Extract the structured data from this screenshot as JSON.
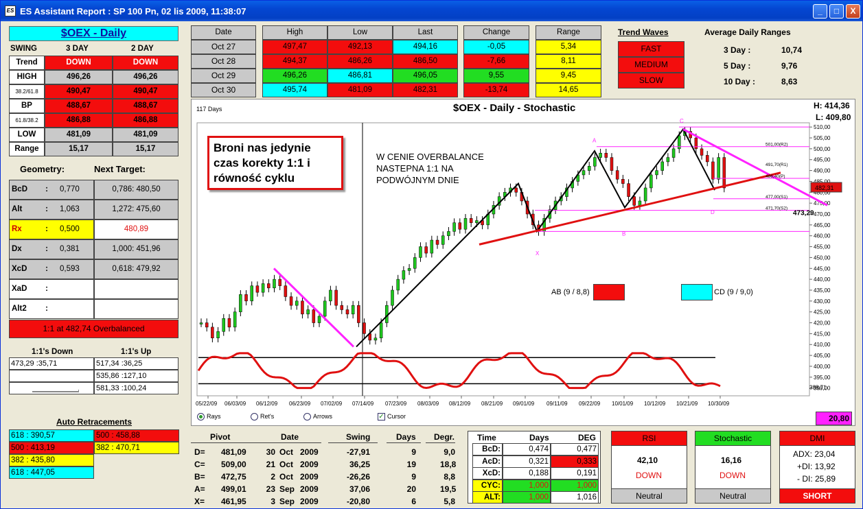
{
  "window": {
    "title": "ES Assistant Report : SP 100  Pn, 02 lis 2009, 11:38:07",
    "minimize": "_",
    "maximize": "□",
    "close": "X"
  },
  "left": {
    "title": "$OEX - Daily",
    "swing_label": "SWING",
    "col1": "3 DAY",
    "col2": "2 DAY",
    "rows": [
      {
        "label": "Trend",
        "v1": "DOWN",
        "v2": "DOWN",
        "c1": "red",
        "c2": "red"
      },
      {
        "label": "HIGH",
        "v1": "496,26",
        "v2": "496,26",
        "c1": "gray",
        "c2": "gray"
      },
      {
        "label": "38.2/61.8",
        "v1": "490,47",
        "v2": "490,47",
        "c1": "red",
        "c2": "red"
      },
      {
        "label": "BP",
        "v1": "488,67",
        "v2": "488,67",
        "c1": "red",
        "c2": "red"
      },
      {
        "label": "61.8/38.2",
        "v1": "486,88",
        "v2": "486,88",
        "c1": "red",
        "c2": "red"
      },
      {
        "label": "LOW",
        "v1": "481,09",
        "v2": "481,09",
        "c1": "gray",
        "c2": "gray"
      },
      {
        "label": "Range",
        "v1": "15,17",
        "v2": "15,17",
        "c1": "gray",
        "c2": "gray"
      }
    ],
    "geometry_label": "Geometry:",
    "next_target_label": "Next Target:",
    "geometry": [
      {
        "label": "BcD",
        "colon": ":",
        "val": "0,770",
        "target": "0,786: 480,50",
        "vc": "gray",
        "tc": "gray"
      },
      {
        "label": "Alt",
        "colon": ":",
        "val": "1,063",
        "target": "1,272: 475,60",
        "vc": "gray",
        "tc": "gray"
      },
      {
        "label": "Rx",
        "colon": ":",
        "val": "0,500",
        "target": "480,89",
        "vc": "yel",
        "tc": "wht"
      },
      {
        "label": "Dx",
        "colon": ":",
        "val": "0,381",
        "target": "1,000: 451,96",
        "vc": "gray",
        "tc": "gray"
      },
      {
        "label": "XcD",
        "colon": ":",
        "val": "0,593",
        "target": "0,618: 479,92",
        "vc": "gray",
        "tc": "gray"
      },
      {
        "label": "XaD",
        "colon": ":",
        "val": "",
        "target": "",
        "vc": "wht",
        "tc": "wht"
      },
      {
        "label": "Alt2",
        "colon": ":",
        "val": "",
        "target": "",
        "vc": "wht",
        "tc": "wht"
      }
    ],
    "overbalanced": "1:1 at 482,74 Overbalanced",
    "down_label": "1:1's Down",
    "up_label": "1:1's Up",
    "down": [
      "473,29 :35,71",
      "",
      ""
    ],
    "up": [
      "517,34 :36,25",
      "535,86 :127,10",
      "581,33 :100,24"
    ],
    "auto_ret_label": "Auto Retracements",
    "auto_left": [
      {
        "t": "618 : 390,57",
        "c": "cyan"
      },
      {
        "t": "500 : 413,19",
        "c": "red"
      },
      {
        "t": "382 : 435,80",
        "c": "yel"
      },
      {
        "t": "618 : 447,05",
        "c": "cyan"
      }
    ],
    "auto_right": [
      {
        "t": "500 : 458,88",
        "c": "red"
      },
      {
        "t": "382 : 470,71",
        "c": "yel"
      }
    ]
  },
  "top": {
    "date_hdr": "Date",
    "high_hdr": "High",
    "low_hdr": "Low",
    "last_hdr": "Last",
    "change_hdr": "Change",
    "range_hdr": "Range",
    "rows": [
      {
        "date": "Oct 27",
        "high": "497,47",
        "low": "492,13",
        "last": "494,16",
        "change": "-0,05",
        "range": "5,34",
        "hc": "red",
        "lc": "red",
        "lac": "cyan",
        "cc": "cyan"
      },
      {
        "date": "Oct 28",
        "high": "494,37",
        "low": "486,26",
        "last": "486,50",
        "change": "-7,66",
        "range": "8,11",
        "hc": "red",
        "lc": "red",
        "lac": "red",
        "cc": "red"
      },
      {
        "date": "Oct 29",
        "high": "496,26",
        "low": "486,81",
        "last": "496,05",
        "change": "9,55",
        "range": "9,45",
        "hc": "grn",
        "lc": "cyan",
        "lac": "grn",
        "cc": "grn"
      },
      {
        "date": "Oct 30",
        "high": "495,74",
        "low": "481,09",
        "last": "482,31",
        "change": "-13,74",
        "range": "14,65",
        "hc": "cyan",
        "lc": "red",
        "lac": "red",
        "cc": "red"
      }
    ],
    "trend_waves_label": "Trend Waves",
    "waves": [
      "FAST",
      "MEDIUM",
      "SLOW"
    ],
    "adr_label": "Average Daily Ranges",
    "adr": [
      {
        "k": "3 Day :",
        "v": "10,74"
      },
      {
        "k": "5 Day :",
        "v": "9,76"
      },
      {
        "k": "10 Day :",
        "v": "8,63"
      }
    ]
  },
  "chart": {
    "title": "$OEX - Daily - Stochastic",
    "days": "117 Days",
    "h": "H:  414,36",
    "l": "L:  409,80",
    "annotation_box": "Broni nas jedynie czas korekty 1:1 i równość cyklu",
    "annotation_text": "W CENIE OVERBALANCE NASTEPNA 1:1 NA PODWÓJNYM DNIE",
    "ab_label": "AB (9 / 8,8)",
    "cd_label": "CD (9 / 9,0)",
    "pts": {
      "a": "A",
      "b": "B",
      "c": "C",
      "d": "D",
      "x": "X"
    },
    "levels": {
      "r2": "501,00(R2)",
      "r1": "491,70(R1)",
      "p": "486,40(P)",
      "s1": "477,00(S1)",
      "s2": "471,70(S2)"
    },
    "price_marker": "482,31",
    "target_marker": "473,29",
    "osc_value": "388,71",
    "osc_box": "20,80",
    "y_ticks": [
      "510,00",
      "505,00",
      "500,00",
      "495,00",
      "490,00",
      "485,00",
      "480,00",
      "475,00",
      "470,00",
      "465,00",
      "460,00",
      "455,00",
      "450,00",
      "445,00",
      "440,00",
      "435,00",
      "430,00",
      "425,00",
      "420,00",
      "415,00",
      "410,00",
      "405,00",
      "400,00",
      "395,00",
      "390,00"
    ],
    "x_ticks": [
      "05/22/09",
      "06/03/09",
      "06/12/09",
      "06/23/09",
      "07/02/09",
      "07/14/09",
      "07/23/09",
      "08/03/09",
      "08/12/09",
      "08/21/09",
      "09/01/09",
      "09/11/09",
      "09/22/09",
      "10/01/09",
      "10/12/09",
      "10/21/09",
      "10/30/09"
    ],
    "radios": [
      "Rays",
      "Ret's",
      "Arrows"
    ],
    "cursor": "Cursor"
  },
  "pivots": {
    "hdr": {
      "pivot": "Pivot",
      "date": "Date",
      "swing": "Swing",
      "days": "Days",
      "degr": "Degr."
    },
    "rows": [
      {
        "k": "D=",
        "p": "481,09",
        "d": "30",
        "m": "Oct",
        "y": "2009",
        "s": "-27,91",
        "dy": "9",
        "dg": "9,0"
      },
      {
        "k": "C=",
        "p": "509,00",
        "d": "21",
        "m": "Oct",
        "y": "2009",
        "s": "36,25",
        "dy": "19",
        "dg": "18,8"
      },
      {
        "k": "B=",
        "p": "472,75",
        "d": "2",
        "m": "Oct",
        "y": "2009",
        "s": "-26,26",
        "dy": "9",
        "dg": "8,8"
      },
      {
        "k": "A=",
        "p": "499,01",
        "d": "23",
        "m": "Sep",
        "y": "2009",
        "s": "37,06",
        "dy": "20",
        "dg": "19,5"
      },
      {
        "k": "X=",
        "p": "461,95",
        "d": "3",
        "m": "Sep",
        "y": "2009",
        "s": "-20,80",
        "dy": "6",
        "dg": "5,8"
      }
    ]
  },
  "time": {
    "hdr": {
      "time": "Time",
      "days": "Days",
      "deg": "DEG"
    },
    "rows": [
      {
        "k": "BcD:",
        "d": "0,474",
        "g": "0,477",
        "kc": "wht",
        "dc": "wht",
        "gc": "wht"
      },
      {
        "k": "AcD:",
        "d": "0,321",
        "g": "0,333",
        "kc": "wht",
        "dc": "wht",
        "gc": "red"
      },
      {
        "k": "XcD:",
        "d": "0,188",
        "g": "0,191",
        "kc": "wht",
        "dc": "wht",
        "gc": "wht"
      },
      {
        "k": "CYC:",
        "d": "1,000",
        "g": "1,000",
        "kc": "yel",
        "dc": "grn",
        "gc": "grn"
      },
      {
        "k": "ALT:",
        "d": "1,000",
        "g": "1,016",
        "kc": "yel",
        "dc": "grn",
        "gc": "wht"
      }
    ]
  },
  "ind": {
    "rsi": {
      "title": "RSI",
      "val": "42,10",
      "dir": "DOWN",
      "foot": "Neutral"
    },
    "stoch": {
      "title": "Stochastic",
      "val": "16,16",
      "dir": "DOWN",
      "foot": "Neutral"
    },
    "dmi": {
      "title": "DMI",
      "adx": "ADX:  23,04",
      "pdi": "+DI:  13,92",
      "mdi": "- DI:  25,89",
      "foot": "SHORT"
    }
  }
}
